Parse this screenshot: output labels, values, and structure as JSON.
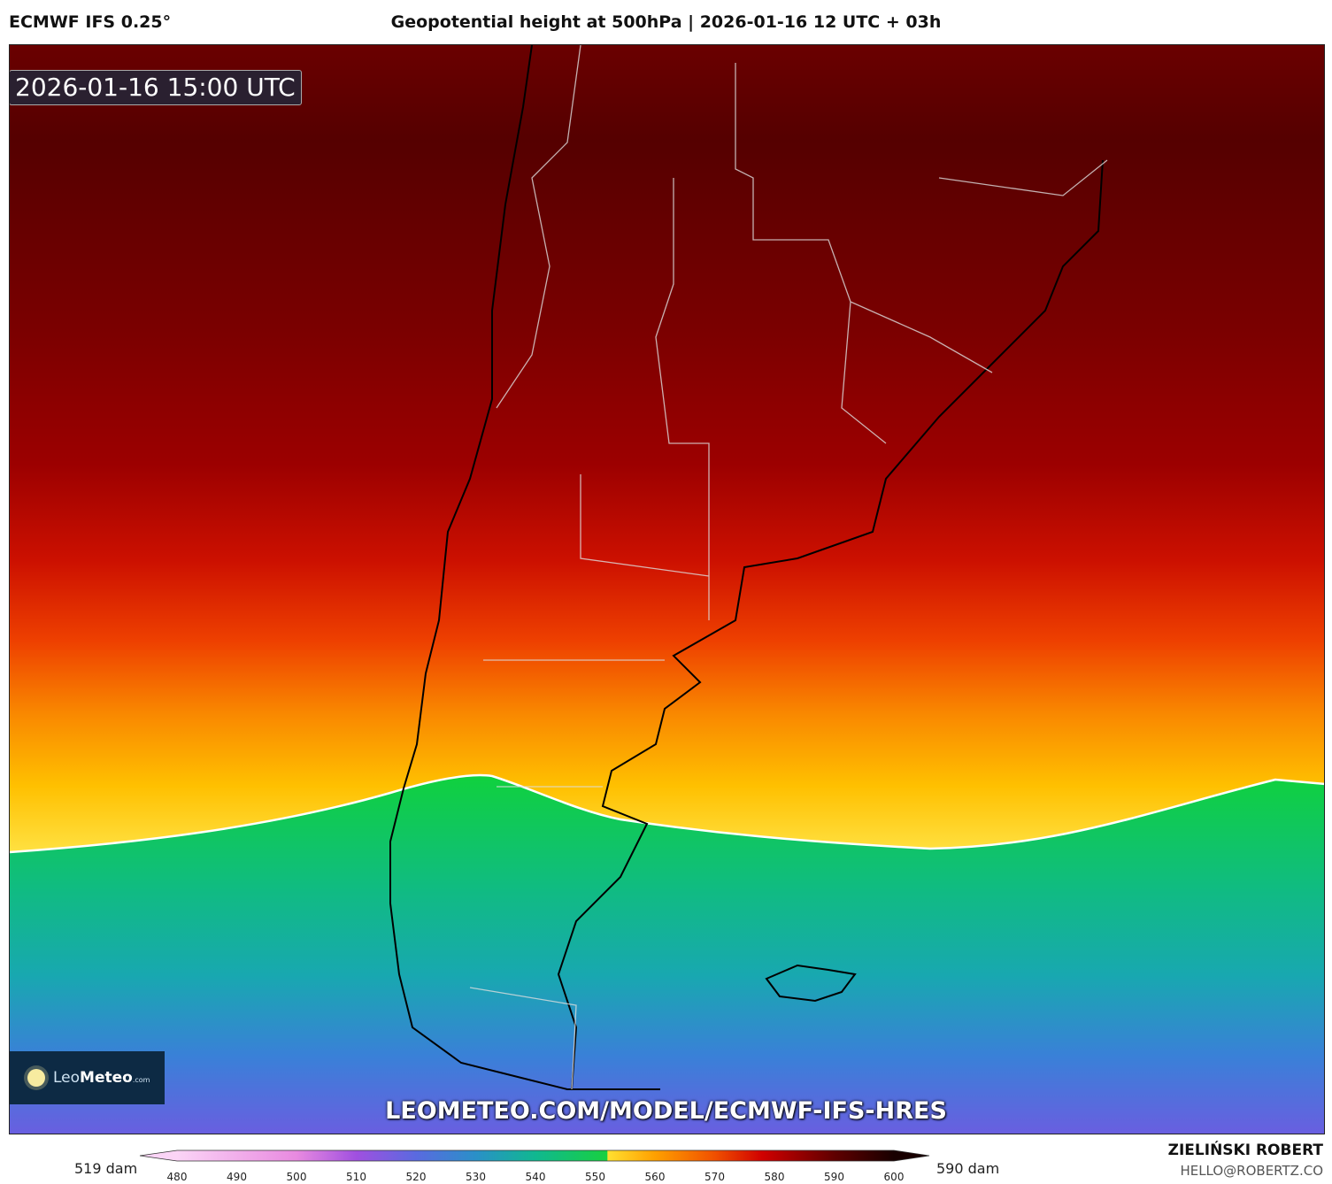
{
  "header": {
    "model": "ECMWF IFS 0.25°",
    "title": "Geopotential height at 500hPa | 2026-01-16 12 UTC + 03h"
  },
  "map": {
    "valid_time": "2026-01-16 15:00 UTC",
    "logo_text": {
      "leo": "Leo",
      "meteo": "Meteo",
      "com": ".com"
    },
    "url": "LEOMETEO.COM/MODEL/ECMWF-IFS-HRES",
    "highlight_contour_dam": 552,
    "region": "Southern South America (Argentina, Chile, Uruguay, Falkland Islands)"
  },
  "colorbar": {
    "min_label": "519 dam",
    "max_label": "590 dam",
    "ticks": [
      "480",
      "490",
      "500",
      "510",
      "520",
      "530",
      "540",
      "550",
      "560",
      "570",
      "580",
      "590",
      "600"
    ],
    "range": [
      480,
      600
    ],
    "stops": [
      {
        "v": 480,
        "c": "#fbd4f6"
      },
      {
        "v": 500,
        "c": "#e88ae0"
      },
      {
        "v": 510,
        "c": "#a050e0"
      },
      {
        "v": 520,
        "c": "#5a6ae0"
      },
      {
        "v": 530,
        "c": "#2a90c8"
      },
      {
        "v": 540,
        "c": "#10b890"
      },
      {
        "v": 552,
        "c": "#18d040"
      },
      {
        "v": 552.1,
        "c": "#ffe030"
      },
      {
        "v": 560,
        "c": "#ffa000"
      },
      {
        "v": 570,
        "c": "#f05000"
      },
      {
        "v": 578,
        "c": "#d00000"
      },
      {
        "v": 590,
        "c": "#600000"
      },
      {
        "v": 600,
        "c": "#180000"
      }
    ]
  },
  "footer": {
    "author": "ZIELIŃSKI ROBERT",
    "email": "HELLO@ROBERTZ.CO"
  }
}
